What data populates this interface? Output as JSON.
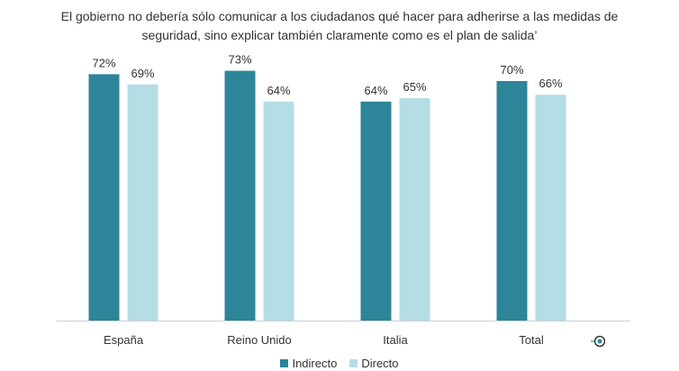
{
  "chart_data": {
    "type": "bar",
    "title": "El gobierno no debería sólo comunicar a los ciudadanos qué hacer para adherirse a las medidas de seguridad, sino explicar también claramente como es el plan de salida’",
    "categories": [
      "España",
      "Reino Unido",
      "Italia",
      "Total"
    ],
    "series": [
      {
        "name": "Indirecto",
        "values": [
          72,
          73,
          64,
          70
        ],
        "color": "#2e8499"
      },
      {
        "name": "Directo",
        "values": [
          69,
          64,
          65,
          66
        ],
        "color": "#b5dde6"
      }
    ],
    "value_format": "%",
    "ylim": [
      0,
      73
    ],
    "xlabel": "",
    "ylabel": "",
    "grid": false,
    "legend_position": "bottom"
  }
}
